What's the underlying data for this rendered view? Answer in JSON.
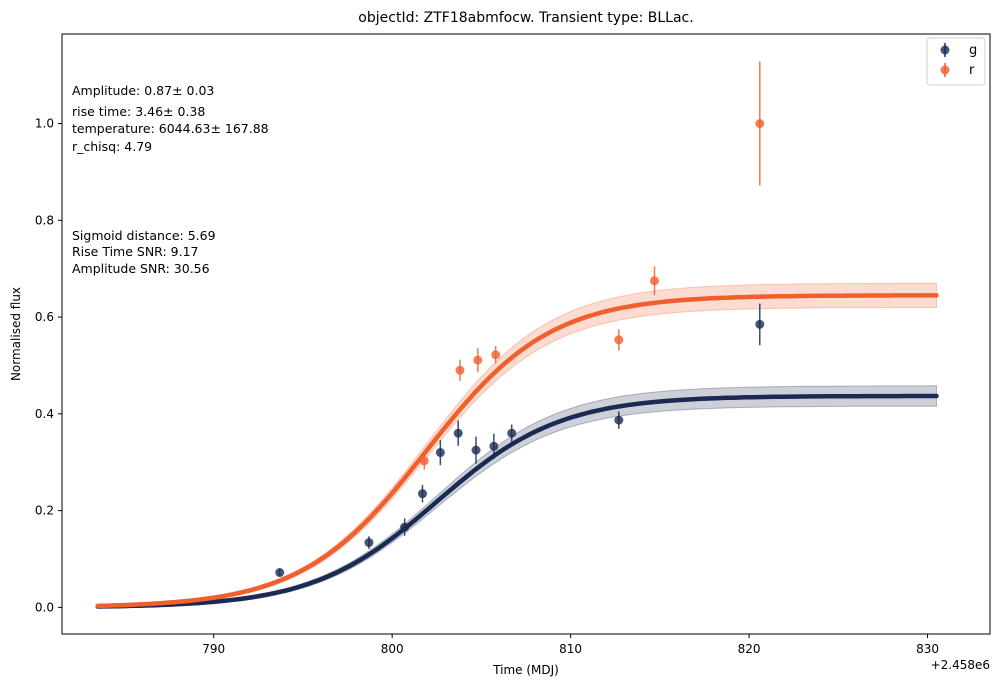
{
  "chart_data": {
    "type": "scatter",
    "title": "objectId: ZTF18abmfocw. Transient type: BLLac.",
    "xlabel": "Time (MDJ)",
    "ylabel": "Normalised flux",
    "x_offset_text": "+2.458e6",
    "xlim": [
      781.5,
      833.5
    ],
    "ylim": [
      -0.055,
      1.185
    ],
    "x_ticks": [
      790,
      800,
      810,
      820,
      830
    ],
    "x_tick_labels": [
      "790",
      "800",
      "810",
      "820",
      "830"
    ],
    "y_ticks": [
      0.0,
      0.2,
      0.4,
      0.6,
      0.8,
      1.0
    ],
    "y_tick_labels": [
      "0.0",
      "0.2",
      "0.4",
      "0.6",
      "0.8",
      "1.0"
    ],
    "legend": {
      "placement": "top-right",
      "entries": [
        "g",
        "r"
      ]
    },
    "annotations": {
      "block1": [
        "Amplitude: 0.87± 0.03",
        "rise time: 3.46± 0.38",
        "temperature: 6044.63± 167.88",
        "r_chisq: 4.79"
      ],
      "block2": [
        "Sigmoid distance: 5.69",
        "Rise Time SNR: 9.17",
        "Amplitude SNR: 30.56"
      ]
    },
    "series": [
      {
        "name": "g",
        "color": "#1b2a52",
        "points": [
          {
            "x": 793.7,
            "y": 0.072,
            "err": 0.008
          },
          {
            "x": 798.7,
            "y": 0.134,
            "err": 0.013
          },
          {
            "x": 800.7,
            "y": 0.166,
            "err": 0.018
          },
          {
            "x": 801.7,
            "y": 0.235,
            "err": 0.018
          },
          {
            "x": 802.7,
            "y": 0.32,
            "err": 0.026
          },
          {
            "x": 803.7,
            "y": 0.36,
            "err": 0.026
          },
          {
            "x": 804.7,
            "y": 0.325,
            "err": 0.028
          },
          {
            "x": 805.7,
            "y": 0.333,
            "err": 0.026
          },
          {
            "x": 806.7,
            "y": 0.36,
            "err": 0.018
          },
          {
            "x": 812.7,
            "y": 0.387,
            "err": 0.018
          },
          {
            "x": 820.6,
            "y": 0.585,
            "err": 0.043
          }
        ],
        "fit": {
          "amplitude": 0.437,
          "t0": 802.5,
          "rise": 3.46,
          "band": 0.018
        }
      },
      {
        "name": "r",
        "color": "#f15f2c",
        "points": [
          {
            "x": 801.8,
            "y": 0.303,
            "err": 0.018
          },
          {
            "x": 803.8,
            "y": 0.49,
            "err": 0.022
          },
          {
            "x": 804.8,
            "y": 0.511,
            "err": 0.025
          },
          {
            "x": 805.8,
            "y": 0.522,
            "err": 0.018
          },
          {
            "x": 812.7,
            "y": 0.553,
            "err": 0.022
          },
          {
            "x": 814.7,
            "y": 0.675,
            "err": 0.03
          },
          {
            "x": 820.6,
            "y": 1.0,
            "err": 0.128
          }
        ],
        "fit": {
          "amplitude": 0.645,
          "t0": 801.9,
          "rise": 3.46,
          "band": 0.022
        }
      }
    ]
  }
}
